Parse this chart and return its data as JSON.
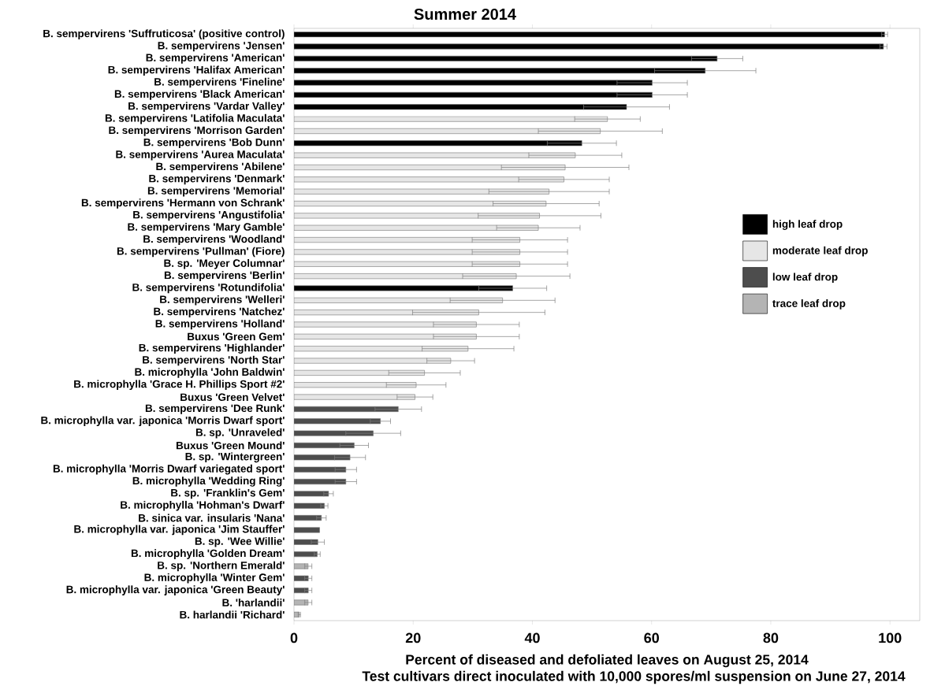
{
  "chart_data": {
    "type": "bar",
    "orientation": "horizontal",
    "title": "Summer 2014",
    "xlabel": "Percent of diseased and defoliated leaves on August 25, 2014",
    "annotations": [
      "Test cultivars direct inoculated with 10,000 spores/ml suspension on June 27, 2014"
    ],
    "categories": [
      "B. sempervirens 'Suffruticosa' (positive control)",
      "B. sempervirens 'Jensen'",
      "B. sempervirens 'American'",
      "B. sempervirens 'Halifax American'",
      "B. sempervirens 'Fineline'",
      "B. sempervirens 'Black American'",
      "B. sempervirens 'Vardar Valley'",
      "B. sempervirens 'Latifolia Maculata'",
      "B. sempervirens 'Morrison Garden'",
      "B. sempervirens 'Bob Dunn'",
      "B. sempervirens 'Aurea Maculata'",
      "B. sempervirens 'Abilene'",
      "B. sempervirens 'Denmark'",
      "B. sempervirens 'Memorial'",
      "B. sempervirens 'Hermann von Schrank'",
      "B. sempervirens 'Angustifolia'",
      "B. sempervirens 'Mary Gamble'",
      "B. sempervirens 'Woodland'",
      "B. sempervirens 'Pullman' (Fiore)",
      "B. sp. 'Meyer Columnar'",
      "B. sempervirens 'Berlin'",
      "B. sempervirens 'Rotundifolia'",
      "B. sempervirens 'Welleri'",
      "B. sempervirens 'Natchez'",
      "B. sempervirens 'Holland'",
      "Buxus 'Green Gem'",
      "B. sempervirens 'Highlander'",
      "B. sempervirens 'North Star'",
      "B. microphylla 'John Baldwin'",
      "B. microphylla 'Grace H. Phillips Sport #2'",
      "Buxus 'Green Velvet'",
      "B. sempervirens 'Dee Runk'",
      "B. microphylla var. japonica 'Morris Dwarf sport'",
      "B. sp. 'Unraveled'",
      "Buxus 'Green Mound'",
      "B. sp. 'Wintergreen'",
      "B. microphylla 'Morris Dwarf variegated sport'",
      "B. microphylla 'Wedding Ring'",
      "B. sp. 'Franklin's Gem'",
      "B. microphylla 'Hohman's Dwarf'",
      "B. sinica var. insularis 'Nana'",
      "B. microphylla var. japonica 'Jim Stauffer'",
      "B. sp. 'Wee Willie'",
      "B. microphylla 'Golden Dream'",
      "B. sp. 'Northern Emerald'",
      "B. microphylla 'Winter Gem'",
      "B. microphylla var. japonica 'Green Beauty'",
      "B. 'harlandii'",
      "B. harlandii 'Richard'"
    ],
    "series": [
      {
        "name": "high leaf drop",
        "color": "#000000",
        "values": [
          99.1,
          98.9,
          71.0,
          69.0,
          60.1,
          60.1,
          55.8,
          null,
          null,
          48.3,
          null,
          null,
          null,
          null,
          null,
          null,
          null,
          null,
          null,
          null,
          null,
          36.7,
          null,
          null,
          null,
          null,
          null,
          null,
          null,
          null,
          null,
          null,
          null,
          null,
          null,
          null,
          null,
          null,
          null,
          null,
          null,
          null,
          null,
          null,
          null,
          null,
          null,
          null,
          null
        ],
        "errors": [
          0.5,
          0.6,
          4.3,
          8.5,
          5.9,
          5.9,
          7.2,
          null,
          null,
          5.8,
          null,
          null,
          null,
          null,
          null,
          null,
          null,
          null,
          null,
          null,
          null,
          5.7,
          null,
          null,
          null,
          null,
          null,
          null,
          null,
          null,
          null,
          null,
          null,
          null,
          null,
          null,
          null,
          null,
          null,
          null,
          null,
          null,
          null,
          null,
          null,
          null,
          null,
          null,
          null
        ]
      },
      {
        "name": "moderate leaf drop",
        "color": "#e6e6e6",
        "values": [
          null,
          null,
          null,
          null,
          null,
          null,
          null,
          52.6,
          51.4,
          null,
          47.2,
          45.5,
          45.3,
          42.8,
          42.3,
          41.2,
          41.0,
          37.9,
          37.9,
          37.9,
          37.3,
          null,
          35.0,
          31.0,
          30.6,
          30.6,
          29.2,
          26.3,
          21.9,
          20.5,
          20.3,
          null,
          null,
          null,
          null,
          null,
          null,
          null,
          null,
          null,
          null,
          null,
          null,
          null,
          null,
          null,
          null,
          null,
          null
        ],
        "errors": [
          null,
          null,
          null,
          null,
          null,
          null,
          null,
          5.5,
          10.4,
          null,
          7.8,
          10.7,
          7.6,
          10.1,
          8.9,
          10.3,
          7.0,
          8.0,
          8.0,
          8.0,
          9.0,
          null,
          8.8,
          11.1,
          7.2,
          7.2,
          7.7,
          4.0,
          6.0,
          5.0,
          3.0,
          null,
          null,
          null,
          null,
          null,
          null,
          null,
          null,
          null,
          null,
          null,
          null,
          null,
          null,
          null,
          null,
          null,
          null
        ]
      },
      {
        "name": "low leaf drop",
        "color": "#4d4d4d",
        "values": [
          null,
          null,
          null,
          null,
          null,
          null,
          null,
          null,
          null,
          null,
          null,
          null,
          null,
          null,
          null,
          null,
          null,
          null,
          null,
          null,
          null,
          null,
          null,
          null,
          null,
          null,
          null,
          null,
          null,
          null,
          null,
          17.5,
          14.5,
          13.3,
          10.1,
          9.4,
          8.7,
          8.7,
          5.8,
          5.1,
          4.6,
          4.3,
          4.0,
          3.9,
          null,
          2.4,
          2.4,
          null,
          null
        ],
        "errors": [
          null,
          null,
          null,
          null,
          null,
          null,
          null,
          null,
          null,
          null,
          null,
          null,
          null,
          null,
          null,
          null,
          null,
          null,
          null,
          null,
          null,
          null,
          null,
          null,
          null,
          null,
          null,
          null,
          null,
          null,
          null,
          3.9,
          1.7,
          4.6,
          2.4,
          2.6,
          1.8,
          1.8,
          0.8,
          0.6,
          0.8,
          null,
          1.1,
          0.5,
          null,
          0.6,
          0.6,
          null,
          null
        ]
      },
      {
        "name": "trace leaf drop",
        "color": "#b4b4b4",
        "values": [
          null,
          null,
          null,
          null,
          null,
          null,
          null,
          null,
          null,
          null,
          null,
          null,
          null,
          null,
          null,
          null,
          null,
          null,
          null,
          null,
          null,
          null,
          null,
          null,
          null,
          null,
          null,
          null,
          null,
          null,
          null,
          null,
          null,
          null,
          null,
          null,
          null,
          null,
          null,
          null,
          null,
          null,
          null,
          null,
          2.4,
          null,
          null,
          2.4,
          0.9
        ],
        "errors": [
          null,
          null,
          null,
          null,
          null,
          null,
          null,
          null,
          null,
          null,
          null,
          null,
          null,
          null,
          null,
          null,
          null,
          null,
          null,
          null,
          null,
          null,
          null,
          null,
          null,
          null,
          null,
          null,
          null,
          null,
          null,
          null,
          null,
          null,
          null,
          null,
          null,
          null,
          null,
          null,
          null,
          null,
          null,
          null,
          0.6,
          null,
          null,
          0.6,
          0.2
        ]
      }
    ],
    "xlim": [
      0,
      105
    ],
    "xticks": [
      0,
      20,
      40,
      60,
      80,
      100
    ],
    "legend": "right"
  }
}
